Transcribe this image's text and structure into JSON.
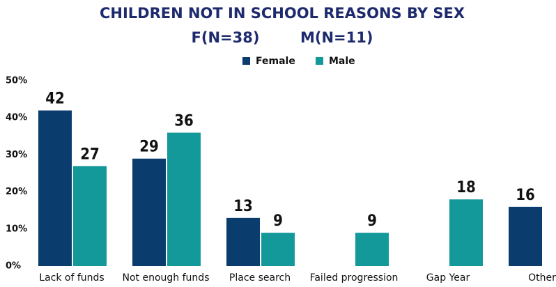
{
  "chart_data": {
    "type": "bar",
    "title": "CHILDREN NOT IN SCHOOL REASONS BY SEX",
    "subtitle": "F(N=38)        M(N=11)",
    "categories": [
      "Lack of funds",
      "Not enough funds",
      "Place search",
      "Failed progression",
      "Gap Year",
      "Other"
    ],
    "series": [
      {
        "name": "Female",
        "color": "#0b3c6e",
        "values": [
          42,
          29,
          13,
          null,
          null,
          16
        ]
      },
      {
        "name": "Male",
        "color": "#14999b",
        "values": [
          27,
          36,
          9,
          9,
          18,
          null
        ]
      }
    ],
    "ylim": [
      0,
      50
    ],
    "yticks": [
      {
        "value": 0,
        "label": "0%"
      },
      {
        "value": 10,
        "label": "10%"
      },
      {
        "value": 20,
        "label": "20%"
      },
      {
        "value": 30,
        "label": "30%"
      },
      {
        "value": 40,
        "label": "40%"
      },
      {
        "value": 50,
        "label": "50%"
      }
    ],
    "legend": "top"
  }
}
